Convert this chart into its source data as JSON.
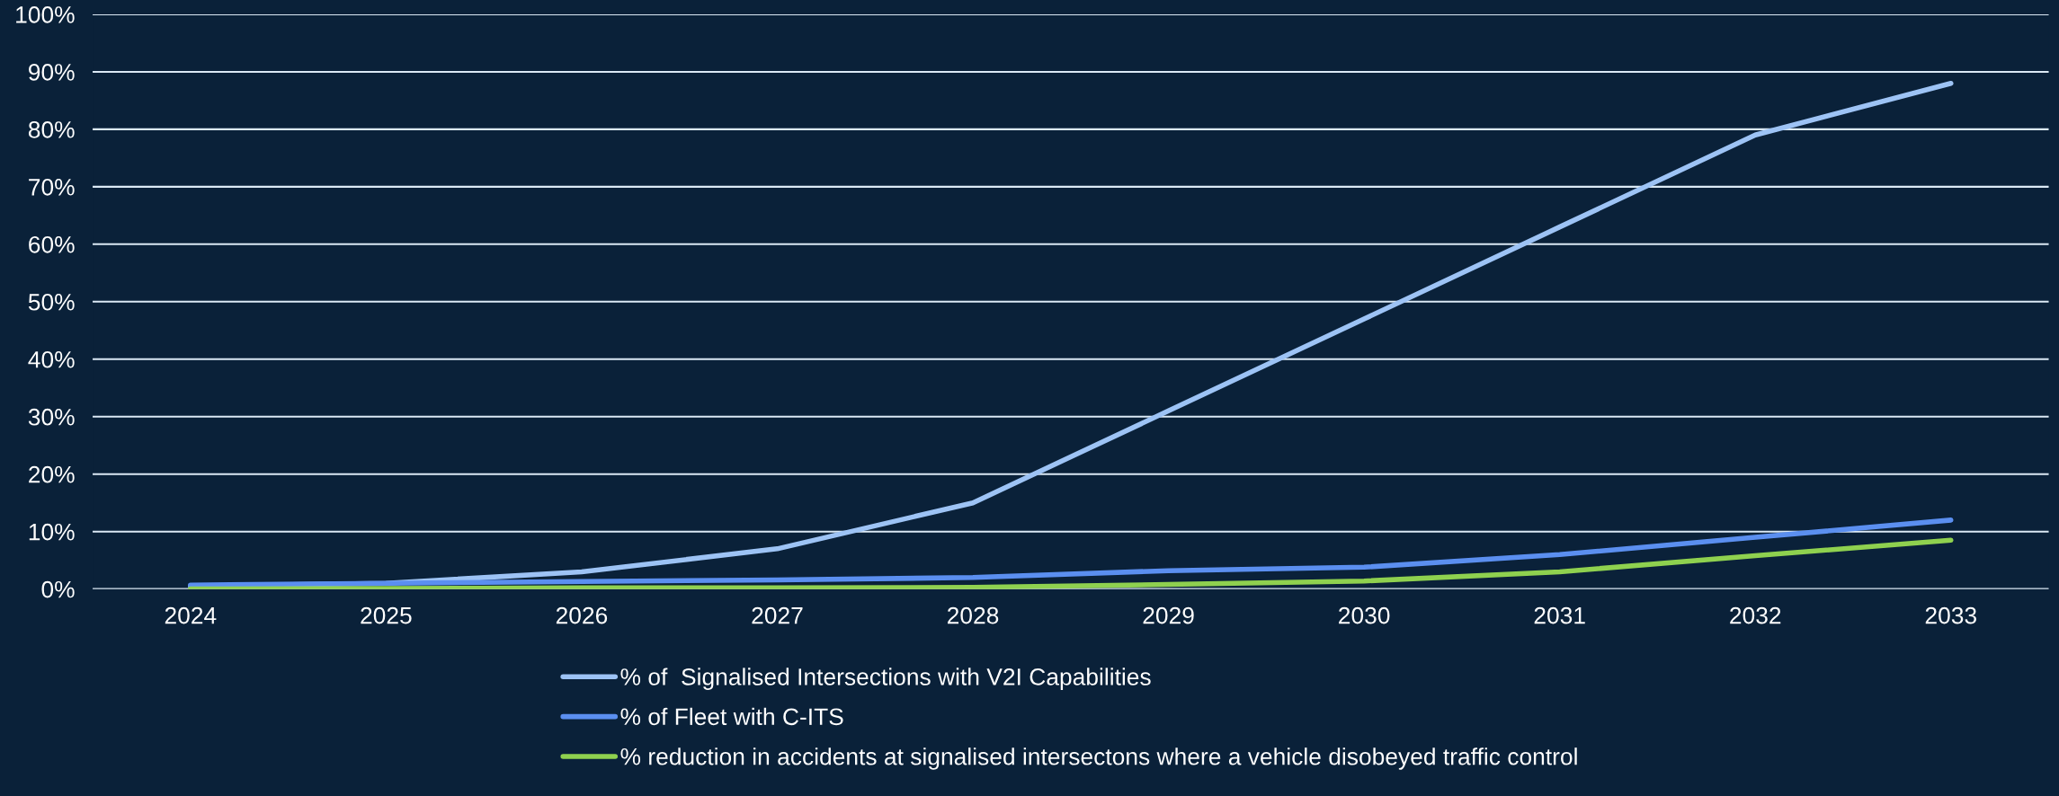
{
  "chart_data": {
    "type": "line",
    "categories": [
      "2024",
      "2025",
      "2026",
      "2027",
      "2028",
      "2029",
      "2030",
      "2031",
      "2032",
      "2033"
    ],
    "series": [
      {
        "name": "% of  Signalised Intersections with V2I Capabilities",
        "color": "#9dc3f5",
        "values": [
          0.5,
          1,
          3,
          7,
          15,
          31,
          47,
          63,
          79,
          88
        ]
      },
      {
        "name": "% of Fleet with C-ITS",
        "color": "#5b8ff0",
        "values": [
          0.7,
          1,
          1.3,
          1.6,
          2,
          3.2,
          3.8,
          6,
          9,
          12
        ]
      },
      {
        "name": "% reduction in accidents at signalised intersectons where a vehicle disobeyed traffic control",
        "color": "#8fd14f",
        "values": [
          0,
          0.1,
          0.2,
          0.2,
          0.3,
          0.8,
          1.4,
          3,
          5.8,
          8.5
        ]
      }
    ],
    "ylim": [
      0,
      100
    ],
    "yticks": [
      {
        "value": 0,
        "label": "0%"
      },
      {
        "value": 10,
        "label": "10%"
      },
      {
        "value": 20,
        "label": "20%"
      },
      {
        "value": 30,
        "label": "30%"
      },
      {
        "value": 40,
        "label": "40%"
      },
      {
        "value": 50,
        "label": "50%"
      },
      {
        "value": 60,
        "label": "60%"
      },
      {
        "value": 70,
        "label": "70%"
      },
      {
        "value": 80,
        "label": "80%"
      },
      {
        "value": 90,
        "label": "90%"
      },
      {
        "value": 100,
        "label": "100%"
      }
    ],
    "grid": "y",
    "legend": "bottom",
    "marker": "none",
    "line_style": "solid"
  }
}
